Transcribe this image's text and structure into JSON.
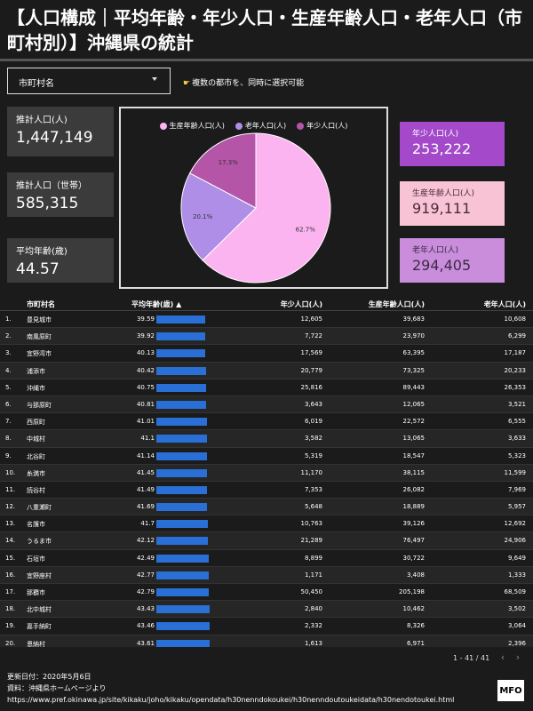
{
  "title": "【人口構成｜平均年齢・年少人口・生産年齢人口・老年人口（市町村別）】沖縄県の統計",
  "filter": {
    "label": "市町村名",
    "hint": "複数の都市を、同時に選択可能"
  },
  "kpis": [
    {
      "label": "推計人口(人)",
      "value": "1,447,149"
    },
    {
      "label": "推計人口（世帯）",
      "value": "585,315"
    },
    {
      "label": "平均年齢(歳)",
      "value": "44.57"
    }
  ],
  "right_kpis": [
    {
      "label": "年少人口(人)",
      "value": "253,222",
      "bg": "#a349c9",
      "fg": "#ffffff"
    },
    {
      "label": "生産年齢人口(人)",
      "value": "919,111",
      "bg": "#f9c3d6",
      "fg": "#4a2b3a"
    },
    {
      "label": "老年人口(人)",
      "value": "294,405",
      "bg": "#c98ddb",
      "fg": "#3b2a44"
    }
  ],
  "chart_data": {
    "type": "pie",
    "legend": [
      "生産年齢人口(人)",
      "老年人口(人)",
      "年少人口(人)"
    ],
    "colors": [
      "#fbb4ef",
      "#ae8ee6",
      "#b455a8"
    ],
    "values": [
      62.7,
      20.1,
      17.3
    ],
    "labels": [
      "62.7%",
      "20.1%",
      "17.3%"
    ],
    "legend_position": "top"
  },
  "table": {
    "headers": [
      "市町村名",
      "平均年齢(歳) ▲",
      "年少人口(人)",
      "生産年齢人口(人)",
      "老年人口(人)"
    ],
    "age_max": 45,
    "rows": [
      [
        "1.",
        "豊見城市",
        "39.59",
        39.59,
        "12,605",
        "39,683",
        "10,608"
      ],
      [
        "2.",
        "南風原町",
        "39.92",
        39.92,
        "7,722",
        "23,970",
        "6,299"
      ],
      [
        "3.",
        "宜野湾市",
        "40.13",
        40.13,
        "17,569",
        "63,395",
        "17,187"
      ],
      [
        "4.",
        "浦添市",
        "40.42",
        40.42,
        "20,779",
        "73,325",
        "20,233"
      ],
      [
        "5.",
        "沖縄市",
        "40.75",
        40.75,
        "25,816",
        "89,443",
        "26,353"
      ],
      [
        "6.",
        "与那原町",
        "40.81",
        40.81,
        "3,643",
        "12,065",
        "3,521"
      ],
      [
        "7.",
        "西原町",
        "41.01",
        41.01,
        "6,019",
        "22,572",
        "6,555"
      ],
      [
        "8.",
        "中城村",
        "41.1",
        41.1,
        "3,582",
        "13,065",
        "3,633"
      ],
      [
        "9.",
        "北谷町",
        "41.14",
        41.14,
        "5,319",
        "18,547",
        "5,323"
      ],
      [
        "10.",
        "糸満市",
        "41.45",
        41.45,
        "11,170",
        "38,115",
        "11,599"
      ],
      [
        "11.",
        "読谷村",
        "41.49",
        41.49,
        "7,353",
        "26,082",
        "7,969"
      ],
      [
        "12.",
        "八重瀬町",
        "41.69",
        41.69,
        "5,648",
        "18,889",
        "5,957"
      ],
      [
        "13.",
        "名護市",
        "41.7",
        41.7,
        "10,763",
        "39,126",
        "12,692"
      ],
      [
        "14.",
        "うるま市",
        "42.12",
        42.12,
        "21,289",
        "76,497",
        "24,906"
      ],
      [
        "15.",
        "石垣市",
        "42.49",
        42.49,
        "8,899",
        "30,722",
        "9,649"
      ],
      [
        "16.",
        "宜野座村",
        "42.77",
        42.77,
        "1,171",
        "3,408",
        "1,333"
      ],
      [
        "17.",
        "那覇市",
        "42.79",
        42.79,
        "50,450",
        "205,198",
        "68,509"
      ],
      [
        "18.",
        "北中城村",
        "43.43",
        43.43,
        "2,840",
        "10,462",
        "3,502"
      ],
      [
        "19.",
        "嘉手納町",
        "43.46",
        43.46,
        "2,332",
        "8,326",
        "3,064"
      ],
      [
        "20.",
        "恩納村",
        "43.61",
        43.61,
        "1,613",
        "6,971",
        "2,396"
      ]
    ]
  },
  "pager": "1 - 41 / 41",
  "footer": {
    "updated": "更新日付：2020年5月6日",
    "source": "資料：沖縄県ホームページより",
    "url": "https://www.pref.okinawa.jp/site/kikaku/joho/kikaku/opendata/h30nenndokoukei/h30nenndoutoukeidata/h30nendotoukei.html"
  },
  "logo": "MFO"
}
